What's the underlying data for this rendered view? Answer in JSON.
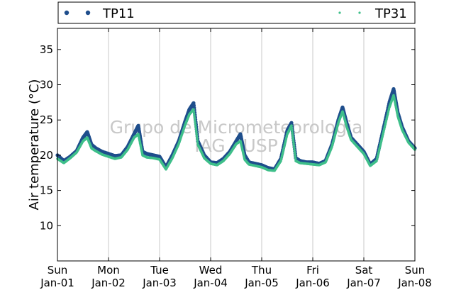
{
  "chart_data": {
    "type": "scatter",
    "title": "",
    "xlabel": "",
    "ylabel": "Air temperature (°C)",
    "ylim": [
      5,
      38
    ],
    "yticks": [
      10,
      15,
      20,
      25,
      30,
      35
    ],
    "xlim": [
      "2014-01-01",
      "2014-01-08"
    ],
    "xticks": [
      {
        "day": "Sun",
        "date": "Jan-01"
      },
      {
        "day": "Mon",
        "date": "Jan-02"
      },
      {
        "day": "Tue",
        "date": "Jan-03"
      },
      {
        "day": "Wed",
        "date": "Jan-04"
      },
      {
        "day": "Thu",
        "date": "Jan-05"
      },
      {
        "day": "Fri",
        "date": "Jan-06"
      },
      {
        "day": "Sat",
        "date": "Jan-07"
      },
      {
        "day": "Sun",
        "date": "Jan-08"
      }
    ],
    "grid": "vertical",
    "legend_position": "top",
    "watermark": [
      "Grupo de Micrometeorologia",
      "IAG - USP"
    ],
    "series": [
      {
        "name": "TP11",
        "color": "#1f4e8c",
        "marker": "filled-circle",
        "x": [
          "2014-01-01 00:00",
          "2014-01-01 03:00",
          "2014-01-01 06:00",
          "2014-01-01 09:00",
          "2014-01-01 12:00",
          "2014-01-01 14:00",
          "2014-01-01 16:00",
          "2014-01-01 18:00",
          "2014-01-01 21:00",
          "2014-01-02 00:00",
          "2014-01-02 03:00",
          "2014-01-02 06:00",
          "2014-01-02 09:00",
          "2014-01-02 12:00",
          "2014-01-02 14:00",
          "2014-01-02 16:00",
          "2014-01-02 18:00",
          "2014-01-02 21:00",
          "2014-01-03 00:00",
          "2014-01-03 03:00",
          "2014-01-03 06:00",
          "2014-01-03 09:00",
          "2014-01-03 12:00",
          "2014-01-03 14:00",
          "2014-01-03 16:00",
          "2014-01-03 18:00",
          "2014-01-03 21:00",
          "2014-01-04 00:00",
          "2014-01-04 03:00",
          "2014-01-04 06:00",
          "2014-01-04 09:00",
          "2014-01-04 12:00",
          "2014-01-04 14:00",
          "2014-01-04 16:00",
          "2014-01-04 18:00",
          "2014-01-04 21:00",
          "2014-01-05 00:00",
          "2014-01-05 03:00",
          "2014-01-05 06:00",
          "2014-01-05 09:00",
          "2014-01-05 12:00",
          "2014-01-05 14:00",
          "2014-01-05 16:00",
          "2014-01-05 18:00",
          "2014-01-05 21:00",
          "2014-01-06 00:00",
          "2014-01-06 03:00",
          "2014-01-06 06:00",
          "2014-01-06 09:00",
          "2014-01-06 12:00",
          "2014-01-06 14:00",
          "2014-01-06 16:00",
          "2014-01-06 18:00",
          "2014-01-06 21:00",
          "2014-01-07 00:00",
          "2014-01-07 03:00",
          "2014-01-07 06:00",
          "2014-01-07 09:00",
          "2014-01-07 12:00",
          "2014-01-07 14:00",
          "2014-01-07 16:00",
          "2014-01-07 18:00",
          "2014-01-07 21:00",
          "2014-01-08 00:00"
        ],
        "y": [
          20.0,
          19.2,
          19.8,
          20.6,
          22.5,
          23.3,
          21.5,
          21.0,
          20.5,
          20.2,
          19.9,
          20.0,
          21.2,
          23.0,
          24.2,
          20.5,
          20.2,
          20.0,
          19.8,
          18.3,
          20.0,
          22.0,
          24.8,
          26.5,
          27.4,
          22.0,
          20.0,
          19.0,
          18.9,
          19.5,
          20.5,
          22.0,
          23.0,
          20.0,
          19.0,
          18.8,
          18.6,
          18.2,
          18.0,
          19.5,
          23.5,
          24.6,
          19.6,
          19.2,
          19.0,
          19.0,
          18.8,
          19.2,
          21.5,
          25.0,
          26.8,
          24.5,
          22.5,
          21.5,
          20.5,
          18.7,
          19.5,
          23.5,
          27.5,
          29.4,
          26.0,
          24.0,
          22.0,
          21.0
        ]
      },
      {
        "name": "TP31",
        "color": "#3fbf8a",
        "marker": "small-dot",
        "x": [
          "2014-01-01 00:00",
          "2014-01-01 03:00",
          "2014-01-01 06:00",
          "2014-01-01 09:00",
          "2014-01-01 12:00",
          "2014-01-01 14:00",
          "2014-01-01 16:00",
          "2014-01-01 18:00",
          "2014-01-01 21:00",
          "2014-01-02 00:00",
          "2014-01-02 03:00",
          "2014-01-02 06:00",
          "2014-01-02 09:00",
          "2014-01-02 12:00",
          "2014-01-02 14:00",
          "2014-01-02 16:00",
          "2014-01-02 18:00",
          "2014-01-02 21:00",
          "2014-01-03 00:00",
          "2014-01-03 03:00",
          "2014-01-03 06:00",
          "2014-01-03 09:00",
          "2014-01-03 12:00",
          "2014-01-03 14:00",
          "2014-01-03 16:00",
          "2014-01-03 18:00",
          "2014-01-03 21:00",
          "2014-01-04 00:00",
          "2014-01-04 03:00",
          "2014-01-04 06:00",
          "2014-01-04 09:00",
          "2014-01-04 12:00",
          "2014-01-04 14:00",
          "2014-01-04 16:00",
          "2014-01-04 18:00",
          "2014-01-04 21:00",
          "2014-01-05 00:00",
          "2014-01-05 03:00",
          "2014-01-05 06:00",
          "2014-01-05 09:00",
          "2014-01-05 12:00",
          "2014-01-05 14:00",
          "2014-01-05 16:00",
          "2014-01-05 18:00",
          "2014-01-05 21:00",
          "2014-01-06 00:00",
          "2014-01-06 03:00",
          "2014-01-06 06:00",
          "2014-01-06 09:00",
          "2014-01-06 12:00",
          "2014-01-06 14:00",
          "2014-01-06 16:00",
          "2014-01-06 18:00",
          "2014-01-06 21:00",
          "2014-01-07 00:00",
          "2014-01-07 03:00",
          "2014-01-07 06:00",
          "2014-01-07 09:00",
          "2014-01-07 12:00",
          "2014-01-07 14:00",
          "2014-01-07 16:00",
          "2014-01-07 18:00",
          "2014-01-07 21:00",
          "2014-01-08 00:00"
        ],
        "y": [
          19.5,
          18.9,
          19.6,
          20.4,
          22.0,
          22.5,
          21.0,
          20.6,
          20.1,
          19.8,
          19.5,
          19.7,
          20.8,
          22.5,
          23.0,
          20.0,
          19.7,
          19.6,
          19.4,
          18.0,
          19.6,
          21.6,
          24.3,
          25.8,
          26.5,
          21.5,
          19.6,
          18.8,
          18.6,
          19.2,
          20.2,
          21.6,
          22.0,
          19.4,
          18.7,
          18.5,
          18.3,
          17.9,
          17.8,
          19.2,
          23.0,
          24.2,
          19.2,
          18.9,
          18.8,
          18.7,
          18.6,
          19.0,
          21.2,
          24.6,
          26.2,
          24.0,
          22.2,
          21.2,
          20.2,
          18.5,
          19.2,
          23.0,
          26.8,
          28.5,
          25.5,
          23.6,
          21.8,
          20.8
        ]
      }
    ]
  }
}
